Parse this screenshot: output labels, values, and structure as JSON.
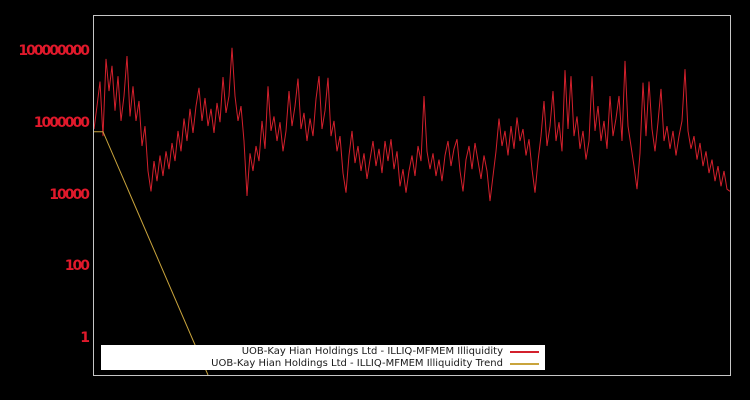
{
  "window": {
    "title": "Illiquidity chart"
  },
  "colors": {
    "background": "#000000",
    "plot_border": "#c6c6c6",
    "axis_label": "#e0192b",
    "series_illiquidity": "#d3202c",
    "series_trend": "#c9a43c",
    "legend_background": "#ffffff",
    "legend_text": "#1a1a1a"
  },
  "chart_data": {
    "type": "line",
    "title": "",
    "xlabel": "",
    "ylabel": "",
    "grid": false,
    "x_axis": {
      "tick_labels": []
    },
    "y_axis": {
      "scale": "log",
      "range": [
        0.1,
        1000000000
      ],
      "ticks": [
        {
          "label": "100000000",
          "value": 100000000
        },
        {
          "label": "1000000",
          "value": 1000000
        },
        {
          "label": "10000",
          "value": 10000
        },
        {
          "label": "100",
          "value": 100
        },
        {
          "label": "1",
          "value": 1
        }
      ]
    },
    "legend": {
      "position": "bottom-center",
      "entries": [
        {
          "label": "UOB-Kay Hian Holdings Ltd - ILLIQ-MFMEM Illiquidity",
          "color": "#d3202c"
        },
        {
          "label": "UOB-Kay Hian Holdings Ltd - ILLIQ-MFMEM Illiquidity Trend",
          "color": "#c9a43c"
        }
      ]
    },
    "series": [
      {
        "name": "UOB-Kay Hian Holdings Ltd - ILLIQ-MFMEM Illiquidity",
        "color": "#d3202c",
        "values": [
          710000.0,
          3100000.0,
          15000000.0,
          450000.0,
          64000000.0,
          8100000.0,
          41000000.0,
          2300000.0,
          21000000.0,
          1200000.0,
          5900000.0,
          77000000.0,
          1600000.0,
          11000000.0,
          1200000.0,
          4300000.0,
          240000.0,
          860000.0,
          48000.0,
          13000.0,
          91000.0,
          25000.0,
          130000.0,
          35000.0,
          170000.0,
          54000.0,
          290000.0,
          91000.0,
          630000.0,
          170000.0,
          1400000.0,
          330000.0,
          2600000.0,
          550000.0,
          3100000.0,
          10000000.0,
          1200000.0,
          5200000.0,
          860000.0,
          2600000.0,
          550000.0,
          3800000.0,
          1100000.0,
          20000000.0,
          2000000.0,
          5900000.0,
          130000000.0,
          5900000.0,
          1200000.0,
          3100000.0,
          330000.0,
          9700.0,
          150000.0,
          48000.0,
          240000.0,
          91000.0,
          1200000.0,
          200000.0,
          11000000.0,
          630000.0,
          1600000.0,
          330000.0,
          1100000.0,
          170000.0,
          630000.0,
          8100000.0,
          860000.0,
          3100000.0,
          18000000.0,
          710000.0,
          2000000.0,
          330000.0,
          1400000.0,
          450000.0,
          4900000.0,
          21000000.0,
          710000.0,
          2300000.0,
          19000000.0,
          450000.0,
          1200000.0,
          170000.0,
          450000.0,
          42000.0,
          12000.0,
          130000.0,
          630000.0,
          80000.0,
          240000.0,
          48000.0,
          150000.0,
          29000.0,
          100000.0,
          330000.0,
          66000.0,
          200000.0,
          42000.0,
          330000.0,
          91000.0,
          370000.0,
          54000.0,
          170000.0,
          18000.0,
          54000.0,
          12000.0,
          48000.0,
          130000.0,
          35000.0,
          240000.0,
          91000.0,
          5900000.0,
          170000.0,
          54000.0,
          150000.0,
          35000.0,
          100000.0,
          25000.0,
          130000.0,
          330000.0,
          66000.0,
          200000.0,
          370000.0,
          48000.0,
          13000.0,
          100000.0,
          240000.0,
          54000.0,
          290000.0,
          91000.0,
          29000.0,
          130000.0,
          48000.0,
          7000.0,
          35000.0,
          170000.0,
          1400000.0,
          240000.0,
          630000.0,
          130000.0,
          860000.0,
          200000.0,
          1500000.0,
          330000.0,
          710000.0,
          130000.0,
          370000.0,
          54000.0,
          12000.0,
          91000.0,
          450000.0,
          4300000.0,
          240000.0,
          860000.0,
          8100000.0,
          330000.0,
          1100000.0,
          170000.0,
          31000000.0,
          710000.0,
          21000000.0,
          450000.0,
          1600000.0,
          200000.0,
          630000.0,
          100000.0,
          330000.0,
          21000000.0,
          630000.0,
          3100000.0,
          330000.0,
          1200000.0,
          200000.0,
          5900000.0,
          450000.0,
          1400000.0,
          5900000.0,
          330000.0,
          56000000.0,
          860000.0,
          240000.0,
          66000.0,
          15000.0,
          150000.0,
          14000000.0,
          450000.0,
          15000000.0,
          710000.0,
          170000.0,
          1100000.0,
          9300000.0,
          330000.0,
          860000.0,
          200000.0,
          630000.0,
          130000.0,
          450000.0,
          1200000.0,
          33000000.0,
          630000.0,
          200000.0,
          450000.0,
          100000.0,
          290000.0,
          66000.0,
          170000.0,
          42000.0,
          100000.0,
          25000.0,
          66000.0,
          18000.0,
          48000.0,
          15000.0,
          13000.0
        ]
      },
      {
        "name": "UOB-Kay Hian Holdings Ltd - ILLIQ-MFMEM Illiquidity Trend",
        "color": "#c9a43c",
        "points": [
          {
            "i": 0,
            "value": 600000
          },
          {
            "i": 3,
            "value": 600000
          },
          {
            "i": 38,
            "value": 0.1
          }
        ]
      }
    ]
  }
}
